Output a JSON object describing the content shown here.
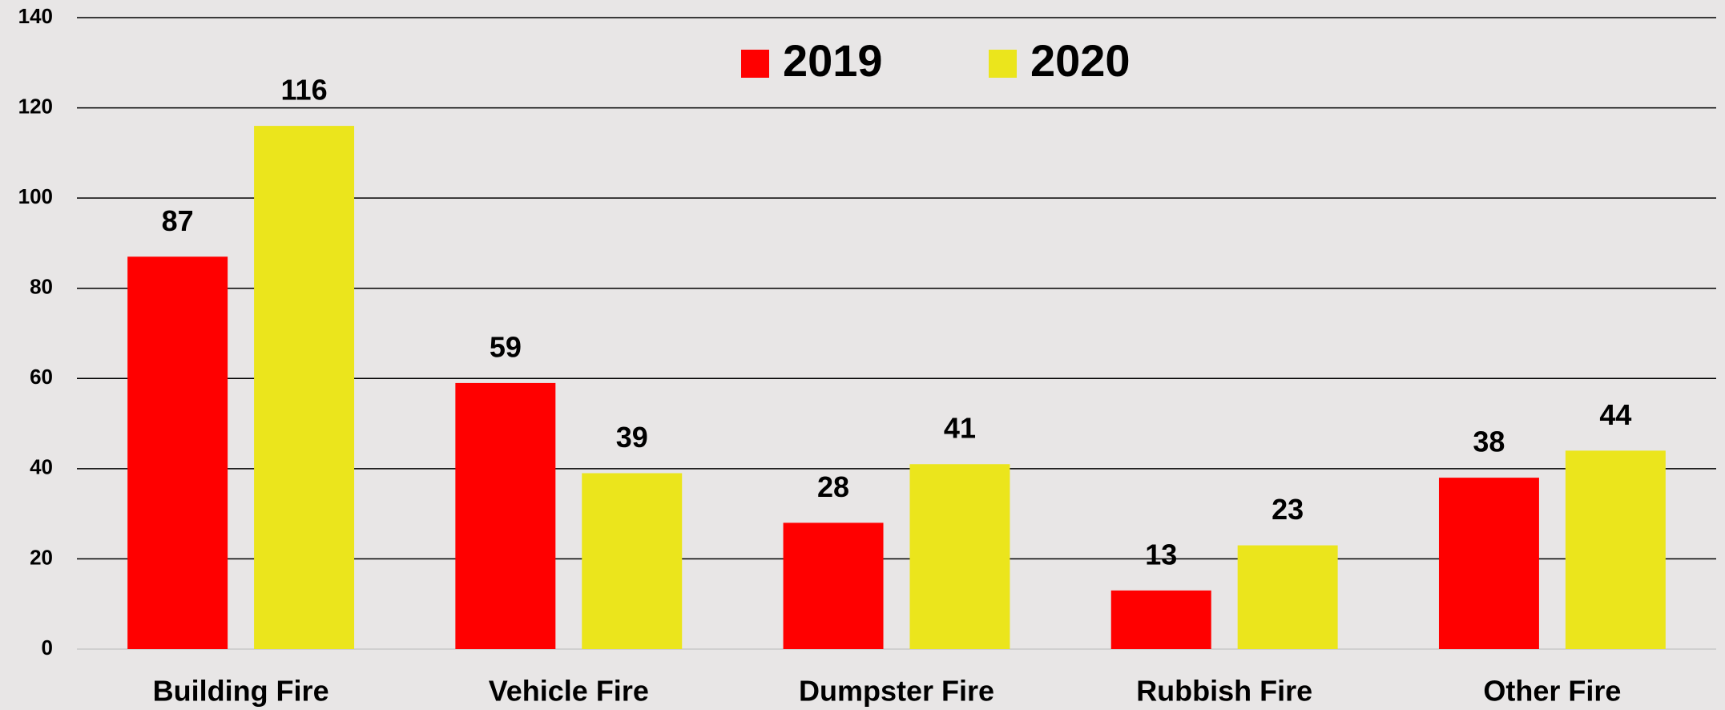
{
  "chart_data": {
    "type": "bar",
    "categories": [
      "Building Fire",
      "Vehicle Fire",
      "Dumpster Fire",
      "Rubbish Fire",
      "Other Fire"
    ],
    "series": [
      {
        "name": "2019",
        "color": "#ff0000",
        "values": [
          87,
          59,
          28,
          13,
          38
        ]
      },
      {
        "name": "2020",
        "color": "#ebe51c",
        "values": [
          116,
          39,
          41,
          23,
          44
        ]
      }
    ],
    "ylim": [
      0,
      140
    ],
    "yticks": [
      0,
      20,
      40,
      60,
      80,
      100,
      120,
      140
    ],
    "grid": true,
    "legend": "top"
  }
}
